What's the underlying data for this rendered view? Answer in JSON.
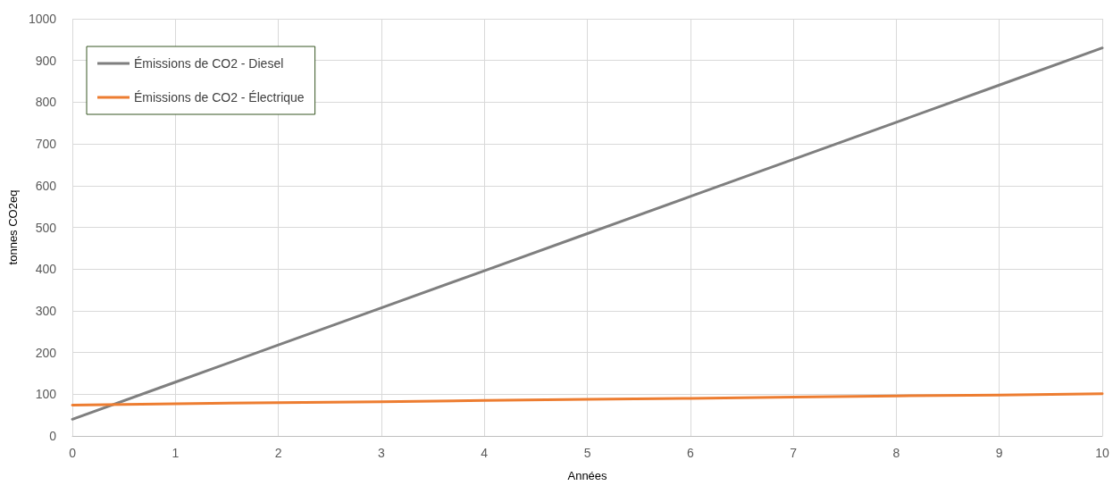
{
  "chart_data": {
    "type": "line",
    "xlabel": "Années",
    "ylabel": "tonnes CO2eq",
    "x": [
      0,
      1,
      2,
      3,
      4,
      5,
      6,
      7,
      8,
      9,
      10
    ],
    "series": [
      {
        "name": "Émissions de CO2 - Diesel",
        "color": "#7f7f7f",
        "values": [
          40,
          129,
          218,
          307,
          396,
          485,
          574,
          663,
          752,
          841,
          930
        ]
      },
      {
        "name": "Émissions de CO2 - Électrique",
        "color": "#ed7d31",
        "values": [
          74,
          77,
          80,
          82,
          85,
          88,
          90,
          93,
          96,
          98,
          101
        ]
      }
    ],
    "xlim": [
      0,
      10
    ],
    "xticks": [
      0,
      1,
      2,
      3,
      4,
      5,
      6,
      7,
      8,
      9,
      10
    ],
    "ylim": [
      0,
      1000
    ],
    "yticks": [
      0,
      100,
      200,
      300,
      400,
      500,
      600,
      700,
      800,
      900,
      1000
    ],
    "grid": true,
    "legend": "top left",
    "marker": "none",
    "line_style": "solid"
  }
}
